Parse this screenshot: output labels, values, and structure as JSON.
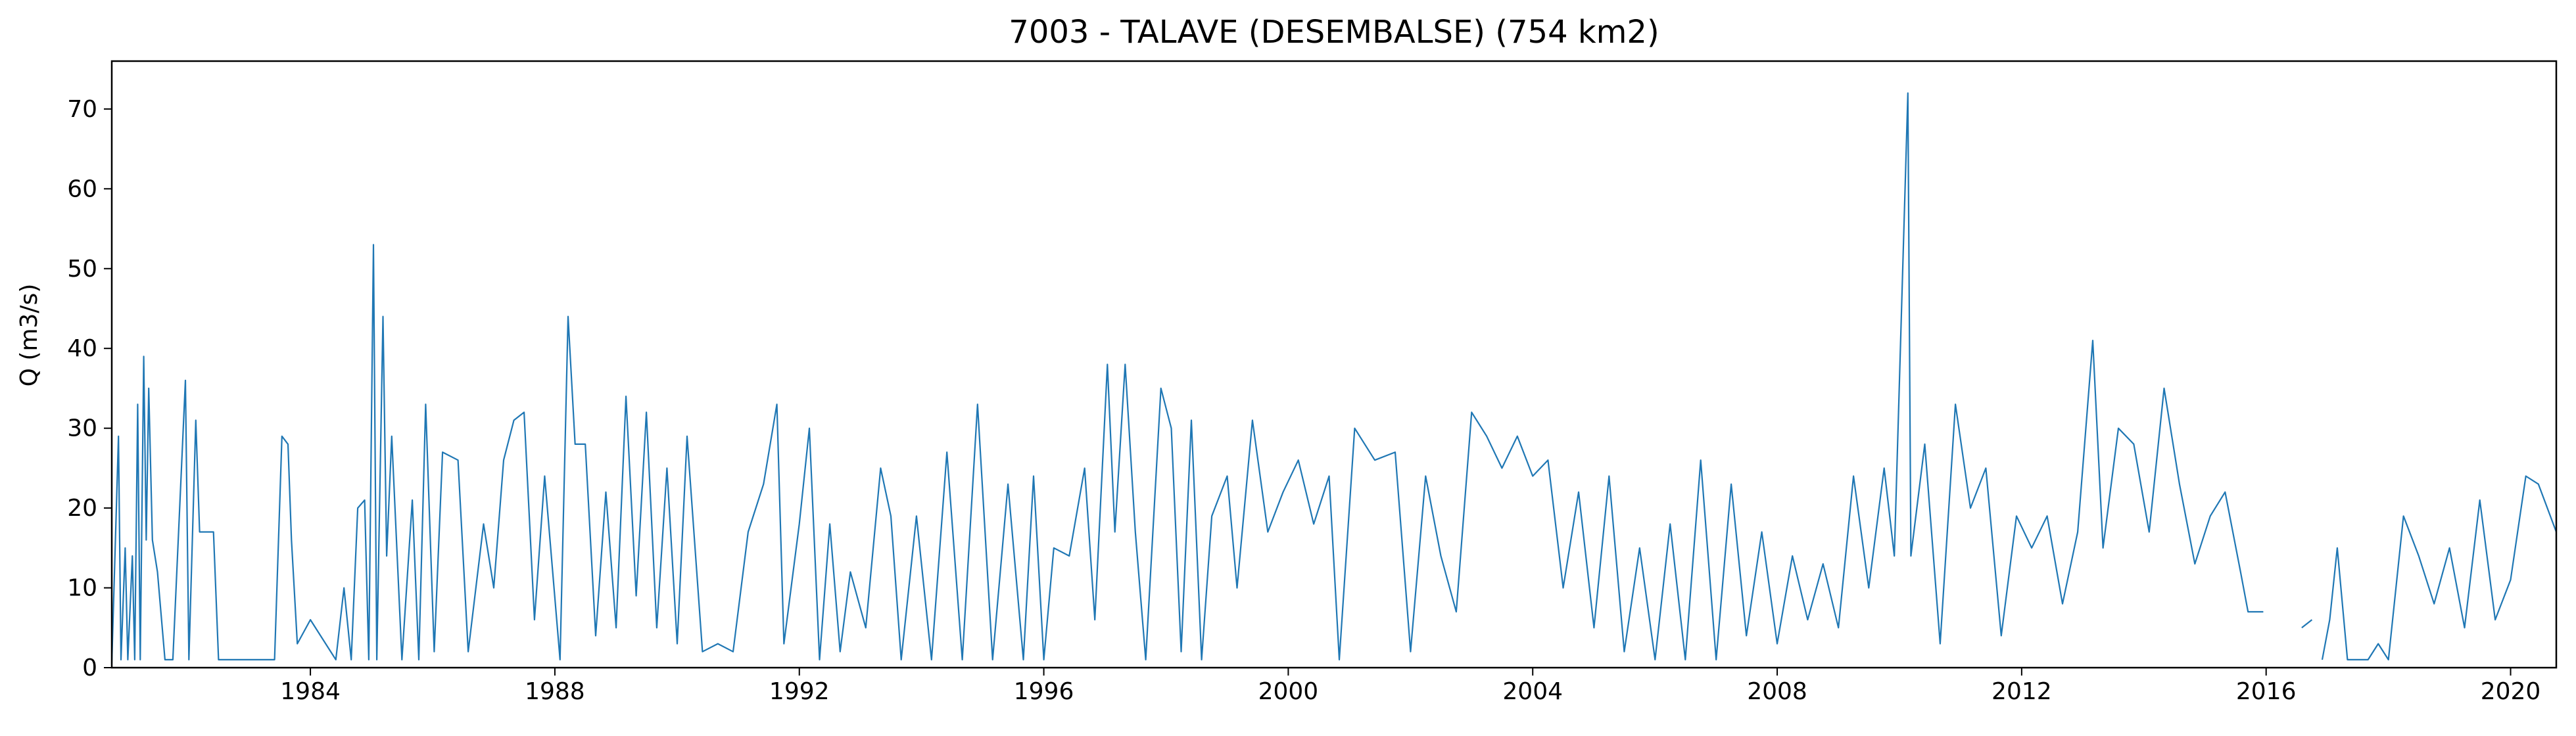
{
  "chart_data": {
    "type": "line",
    "title": "7003 - TALAVE (DESEMBALSE) (754 km2)",
    "xlabel": "",
    "ylabel": "Q (m3/s)",
    "x_ticks": [
      "1984",
      "1988",
      "1992",
      "1996",
      "2000",
      "2004",
      "2008",
      "2012",
      "2016",
      "2020"
    ],
    "y_ticks": [
      0,
      10,
      20,
      30,
      40,
      50,
      60,
      70
    ],
    "xlim": [
      "1980-10-01",
      "2020-09-30"
    ],
    "ylim": [
      0,
      76
    ],
    "grid": false,
    "legend": "none",
    "line_color": "#1f77b4",
    "series": [
      {
        "values": [
          [
            "1980-10-01",
            0.5
          ],
          [
            "1980-11-10",
            29
          ],
          [
            "1980-11-25",
            1
          ],
          [
            "1980-12-20",
            15
          ],
          [
            "1981-01-05",
            1
          ],
          [
            "1981-02-01",
            14
          ],
          [
            "1981-02-15",
            1
          ],
          [
            "1981-03-05",
            33
          ],
          [
            "1981-03-20",
            1
          ],
          [
            "1981-04-10",
            39
          ],
          [
            "1981-04-25",
            16
          ],
          [
            "1981-05-10",
            35
          ],
          [
            "1981-06-01",
            16
          ],
          [
            "1981-07-01",
            12
          ],
          [
            "1981-08-15",
            1
          ],
          [
            "1981-10-01",
            1
          ],
          [
            "1981-12-15",
            36
          ],
          [
            "1982-01-05",
            1
          ],
          [
            "1982-02-15",
            31
          ],
          [
            "1982-03-10",
            17
          ],
          [
            "1982-06-01",
            17
          ],
          [
            "1982-07-01",
            1
          ],
          [
            "1983-01-01",
            1
          ],
          [
            "1983-06-01",
            1
          ],
          [
            "1983-07-15",
            29
          ],
          [
            "1983-08-20",
            28
          ],
          [
            "1983-09-10",
            16
          ],
          [
            "1983-10-15",
            3
          ],
          [
            "1984-01-01",
            6
          ],
          [
            "1984-06-01",
            1
          ],
          [
            "1984-07-20",
            10
          ],
          [
            "1984-09-01",
            1
          ],
          [
            "1984-10-10",
            20
          ],
          [
            "1984-11-20",
            21
          ],
          [
            "1984-12-15",
            1
          ],
          [
            "1985-01-12",
            53
          ],
          [
            "1985-02-01",
            1
          ],
          [
            "1985-03-10",
            44
          ],
          [
            "1985-04-01",
            14
          ],
          [
            "1985-05-01",
            29
          ],
          [
            "1985-07-01",
            1
          ],
          [
            "1985-09-01",
            21
          ],
          [
            "1985-10-10",
            1
          ],
          [
            "1985-11-20",
            33
          ],
          [
            "1986-01-10",
            2
          ],
          [
            "1986-03-01",
            27
          ],
          [
            "1986-06-01",
            26
          ],
          [
            "1986-08-01",
            2
          ],
          [
            "1986-11-01",
            18
          ],
          [
            "1987-01-01",
            10
          ],
          [
            "1987-03-01",
            26
          ],
          [
            "1987-05-01",
            31
          ],
          [
            "1987-07-01",
            32
          ],
          [
            "1987-09-01",
            6
          ],
          [
            "1987-11-01",
            24
          ],
          [
            "1988-02-01",
            1
          ],
          [
            "1988-03-20",
            44
          ],
          [
            "1988-05-01",
            28
          ],
          [
            "1988-07-01",
            28
          ],
          [
            "1988-09-01",
            4
          ],
          [
            "1988-11-01",
            22
          ],
          [
            "1989-01-01",
            5
          ],
          [
            "1989-03-01",
            34
          ],
          [
            "1989-05-01",
            9
          ],
          [
            "1989-07-01",
            32
          ],
          [
            "1989-09-01",
            5
          ],
          [
            "1989-11-01",
            25
          ],
          [
            "1990-01-01",
            3
          ],
          [
            "1990-03-01",
            29
          ],
          [
            "1990-06-01",
            2
          ],
          [
            "1990-09-01",
            3
          ],
          [
            "1990-12-01",
            2
          ],
          [
            "1991-03-01",
            17
          ],
          [
            "1991-06-01",
            23
          ],
          [
            "1991-08-20",
            33
          ],
          [
            "1991-10-01",
            3
          ],
          [
            "1992-01-01",
            18
          ],
          [
            "1992-03-01",
            30
          ],
          [
            "1992-05-01",
            1
          ],
          [
            "1992-07-01",
            18
          ],
          [
            "1992-09-01",
            2
          ],
          [
            "1992-11-01",
            12
          ],
          [
            "1993-02-01",
            5
          ],
          [
            "1993-05-01",
            25
          ],
          [
            "1993-07-01",
            19
          ],
          [
            "1993-09-01",
            1
          ],
          [
            "1993-12-01",
            19
          ],
          [
            "1994-03-01",
            1
          ],
          [
            "1994-06-01",
            27
          ],
          [
            "1994-09-01",
            1
          ],
          [
            "1994-12-01",
            33
          ],
          [
            "1995-03-01",
            1
          ],
          [
            "1995-06-01",
            23
          ],
          [
            "1995-09-01",
            1
          ],
          [
            "1995-11-01",
            24
          ],
          [
            "1996-01-01",
            1
          ],
          [
            "1996-03-01",
            15
          ],
          [
            "1996-06-01",
            14
          ],
          [
            "1996-09-01",
            25
          ],
          [
            "1996-11-01",
            6
          ],
          [
            "1997-01-15",
            38
          ],
          [
            "1997-03-01",
            17
          ],
          [
            "1997-05-01",
            38
          ],
          [
            "1997-07-01",
            17
          ],
          [
            "1997-09-01",
            1
          ],
          [
            "1997-12-01",
            35
          ],
          [
            "1998-02-01",
            30
          ],
          [
            "1998-04-01",
            2
          ],
          [
            "1998-06-01",
            31
          ],
          [
            "1998-08-01",
            1
          ],
          [
            "1998-10-01",
            19
          ],
          [
            "1999-01-01",
            24
          ],
          [
            "1999-03-01",
            10
          ],
          [
            "1999-06-01",
            31
          ],
          [
            "1999-09-01",
            17
          ],
          [
            "1999-12-01",
            22
          ],
          [
            "2000-03-01",
            26
          ],
          [
            "2000-06-01",
            18
          ],
          [
            "2000-09-01",
            24
          ],
          [
            "2000-11-01",
            1
          ],
          [
            "2001-02-01",
            30
          ],
          [
            "2001-06-01",
            26
          ],
          [
            "2001-10-01",
            27
          ],
          [
            "2002-01-01",
            2
          ],
          [
            "2002-04-01",
            24
          ],
          [
            "2002-07-01",
            14
          ],
          [
            "2002-10-01",
            7
          ],
          [
            "2003-01-01",
            32
          ],
          [
            "2003-04-01",
            29
          ],
          [
            "2003-07-01",
            25
          ],
          [
            "2003-10-01",
            29
          ],
          [
            "2004-01-01",
            24
          ],
          [
            "2004-04-01",
            26
          ],
          [
            "2004-07-01",
            10
          ],
          [
            "2004-10-01",
            22
          ],
          [
            "2005-01-01",
            5
          ],
          [
            "2005-04-01",
            24
          ],
          [
            "2005-07-01",
            2
          ],
          [
            "2005-10-01",
            15
          ],
          [
            "2006-01-01",
            1
          ],
          [
            "2006-04-01",
            18
          ],
          [
            "2006-07-01",
            1
          ],
          [
            "2006-10-01",
            26
          ],
          [
            "2007-01-01",
            1
          ],
          [
            "2007-04-01",
            23
          ],
          [
            "2007-07-01",
            4
          ],
          [
            "2007-10-01",
            17
          ],
          [
            "2008-01-01",
            3
          ],
          [
            "2008-04-01",
            14
          ],
          [
            "2008-07-01",
            6
          ],
          [
            "2008-10-01",
            13
          ],
          [
            "2009-01-01",
            5
          ],
          [
            "2009-04-01",
            24
          ],
          [
            "2009-07-01",
            10
          ],
          [
            "2009-10-01",
            25
          ],
          [
            "2009-12-01",
            14
          ],
          [
            "2010-02-20",
            72
          ],
          [
            "2010-03-10",
            14
          ],
          [
            "2010-06-01",
            28
          ],
          [
            "2010-09-01",
            3
          ],
          [
            "2010-12-01",
            33
          ],
          [
            "2011-03-01",
            20
          ],
          [
            "2011-06-01",
            25
          ],
          [
            "2011-09-01",
            4
          ],
          [
            "2011-12-01",
            19
          ],
          [
            "2012-03-01",
            15
          ],
          [
            "2012-06-01",
            19
          ],
          [
            "2012-09-01",
            8
          ],
          [
            "2012-12-01",
            17
          ],
          [
            "2013-03-01",
            41
          ],
          [
            "2013-05-01",
            15
          ],
          [
            "2013-08-01",
            30
          ],
          [
            "2013-11-01",
            28
          ],
          [
            "2014-02-01",
            17
          ],
          [
            "2014-05-01",
            35
          ],
          [
            "2014-08-01",
            23
          ],
          [
            "2014-11-01",
            13
          ],
          [
            "2015-02-01",
            19
          ],
          [
            "2015-05-01",
            22
          ],
          [
            "2015-08-01",
            12
          ],
          [
            "2015-09-15",
            7
          ],
          [
            "2015-12-15",
            7
          ],
          null,
          [
            "2016-08-01",
            5
          ],
          [
            "2016-10-01",
            6
          ],
          null,
          [
            "2016-12-01",
            1
          ],
          [
            "2017-01-15",
            6
          ],
          [
            "2017-03-01",
            15
          ],
          [
            "2017-05-01",
            1
          ],
          [
            "2017-09-01",
            1
          ],
          [
            "2017-11-01",
            3
          ],
          [
            "2018-01-01",
            1
          ],
          [
            "2018-04-01",
            19
          ],
          [
            "2018-07-01",
            14
          ],
          [
            "2018-10-01",
            8
          ],
          [
            "2019-01-01",
            15
          ],
          [
            "2019-04-01",
            5
          ],
          [
            "2019-07-01",
            21
          ],
          [
            "2019-10-01",
            6
          ],
          [
            "2020-01-01",
            11
          ],
          [
            "2020-04-01",
            24
          ],
          [
            "2020-06-15",
            23
          ],
          [
            "2020-09-30",
            17
          ]
        ]
      }
    ]
  }
}
